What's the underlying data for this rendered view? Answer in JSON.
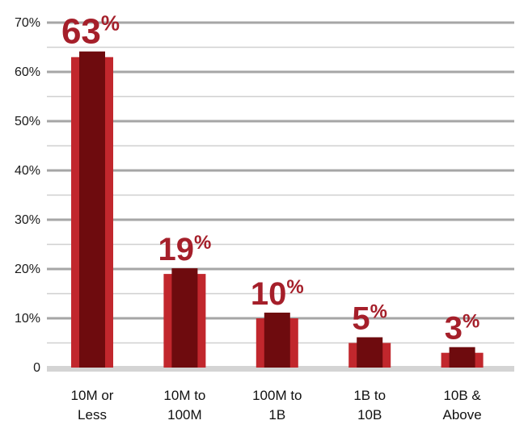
{
  "chart_data": {
    "type": "bar",
    "title": "",
    "xlabel": "",
    "ylabel": "",
    "categories": [
      [
        "10M or",
        "Less"
      ],
      [
        "10M to",
        "100M"
      ],
      [
        "100M to",
        "1B"
      ],
      [
        "1B to",
        "10B"
      ],
      [
        "10B &",
        "Above"
      ]
    ],
    "values": [
      63,
      19,
      10,
      5,
      3
    ],
    "value_labels": [
      {
        "number": "63",
        "suffix": "%"
      },
      {
        "number": "19",
        "suffix": "%"
      },
      {
        "number": "10",
        "suffix": "%"
      },
      {
        "number": "5",
        "suffix": "%"
      },
      {
        "number": "3",
        "suffix": "%"
      }
    ],
    "ylim": [
      0,
      70
    ],
    "yticks": [
      {
        "value": 0,
        "label": "0"
      },
      {
        "value": 10,
        "label": "10%"
      },
      {
        "value": 20,
        "label": "20%"
      },
      {
        "value": 30,
        "label": "30%"
      },
      {
        "value": 40,
        "label": "40%"
      },
      {
        "value": 50,
        "label": "50%"
      },
      {
        "value": 60,
        "label": "60%"
      },
      {
        "value": 70,
        "label": "70%"
      }
    ],
    "grid": true,
    "legend": "none",
    "colors": {
      "bar_outer": "#c1272d",
      "bar_inner": "#6e0b0e",
      "value_label": "#a51f2a",
      "grid_major": "#a6a6a6",
      "grid_minor": "#d0d0d0",
      "baseline": "#d4d4d4"
    }
  }
}
